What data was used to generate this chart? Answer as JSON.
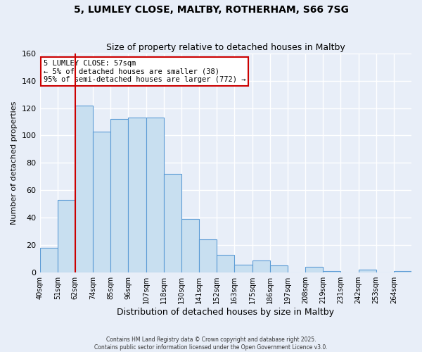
{
  "title": "5, LUMLEY CLOSE, MALTBY, ROTHERHAM, S66 7SG",
  "subtitle": "Size of property relative to detached houses in Maltby",
  "xlabel": "Distribution of detached houses by size in Maltby",
  "ylabel": "Number of detached properties",
  "bin_labels": [
    "40sqm",
    "51sqm",
    "62sqm",
    "74sqm",
    "85sqm",
    "96sqm",
    "107sqm",
    "118sqm",
    "130sqm",
    "141sqm",
    "152sqm",
    "163sqm",
    "175sqm",
    "186sqm",
    "197sqm",
    "208sqm",
    "219sqm",
    "231sqm",
    "242sqm",
    "253sqm",
    "264sqm"
  ],
  "bar_values": [
    18,
    53,
    122,
    103,
    112,
    113,
    113,
    72,
    39,
    24,
    13,
    6,
    9,
    5,
    0,
    4,
    1,
    0,
    2,
    0,
    1
  ],
  "bar_color": "#c8dff0",
  "bar_edge_color": "#5b9bd5",
  "marker_label": "5 LUMLEY CLOSE: 57sqm",
  "marker_line_label1": "← 5% of detached houses are smaller (38)",
  "marker_line_label2": "95% of semi-detached houses are larger (772) →",
  "marker_color": "#cc0000",
  "ylim": [
    0,
    160
  ],
  "yticks": [
    0,
    20,
    40,
    60,
    80,
    100,
    120,
    140,
    160
  ],
  "footer_line1": "Contains HM Land Registry data © Crown copyright and database right 2025.",
  "footer_line2": "Contains public sector information licensed under the Open Government Licence v3.0.",
  "bg_color": "#e8eef8",
  "grid_color": "#ffffff",
  "annotation_box_color": "#ffffff",
  "annotation_box_edge": "#cc0000"
}
